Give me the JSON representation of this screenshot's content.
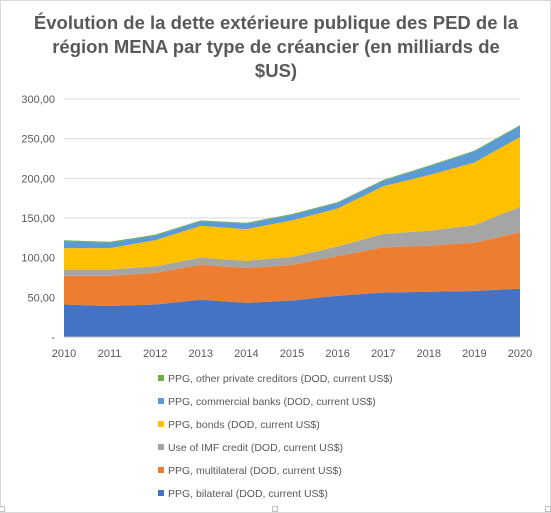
{
  "chart_data": {
    "type": "area",
    "stacked": true,
    "title": "Évolution de la dette extérieure publique des PED de la région MENA par type de créancier (en milliards de $US)",
    "title_lines": [
      "Évolution de la dette extérieure publique des PED de la",
      "région MENA par type de créancier (en milliards de",
      "$US)"
    ],
    "x": [
      2010,
      2011,
      2012,
      2013,
      2014,
      2015,
      2016,
      2017,
      2018,
      2019,
      2020
    ],
    "x_tick_labels": [
      "2010",
      "2011",
      "2012",
      "2013",
      "2014",
      "2015",
      "2016",
      "2017",
      "2018",
      "2019",
      "2020"
    ],
    "ylim": [
      0,
      300
    ],
    "y_ticks": [
      0,
      50,
      100,
      150,
      200,
      250,
      300
    ],
    "y_tick_labels": [
      "-",
      "50,00",
      "100,00",
      "150,00",
      "200,00",
      "250,00",
      "300,00"
    ],
    "grid": "horizontal",
    "legend_position": "bottom",
    "series": [
      {
        "name": "PPG, bilateral (DOD, current US$)",
        "color": "#4472c4",
        "values": [
          41,
          39,
          41,
          47,
          43,
          46,
          52,
          56,
          57,
          58,
          61
        ]
      },
      {
        "name": "PPG, multilateral (DOD, current US$)",
        "color": "#ed7d31",
        "values": [
          36,
          38,
          40,
          44,
          44,
          45,
          50,
          57,
          58,
          61,
          71
        ]
      },
      {
        "name": "Use of IMF credit (DOD, current US$)",
        "color": "#a5a5a5",
        "values": [
          8,
          8,
          8,
          9,
          9,
          10,
          12,
          17,
          19,
          22,
          32
        ]
      },
      {
        "name": "PPG, bonds (DOD, current US$)",
        "color": "#ffc000",
        "values": [
          27,
          27,
          33,
          40,
          40,
          46,
          48,
          60,
          70,
          79,
          88
        ]
      },
      {
        "name": "PPG, commercial banks (DOD, current US$)",
        "color": "#5b9bd5",
        "values": [
          9,
          7,
          6,
          6,
          7,
          7,
          7,
          7,
          11,
          14,
          14
        ]
      },
      {
        "name": "PPG, other private creditors (DOD, current US$)",
        "color": "#70ad47",
        "values": [
          1,
          1,
          1,
          1,
          1,
          1,
          1,
          1,
          1,
          1,
          1
        ]
      }
    ]
  }
}
